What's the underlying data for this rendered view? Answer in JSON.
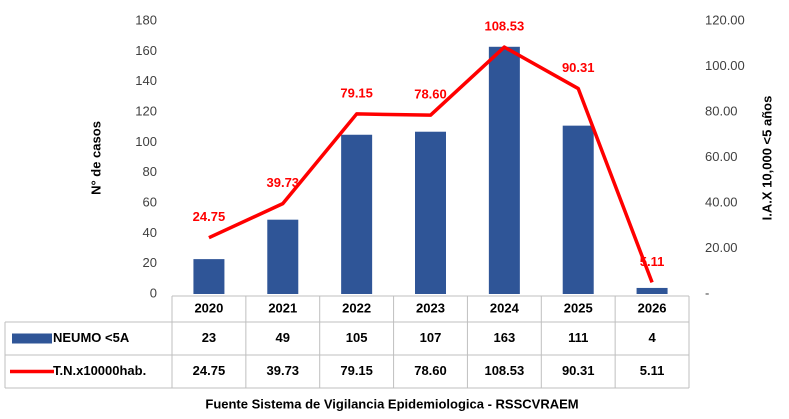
{
  "chart_data": {
    "type": "bar_line",
    "y_label": "N° de casos",
    "y2_label": "I.A.X 10,000 <5 años",
    "footer": "Fuente Sistema de Vigilancia  Epidemiologica  - RSSCVRAEM",
    "categories": [
      "2020",
      "2021",
      "2022",
      "2023",
      "2024",
      "2025",
      "2026"
    ],
    "series": [
      {
        "name": "NEUMO <5A",
        "color": "#2f5597",
        "type": "bar",
        "values": [
          23,
          49,
          105,
          107,
          163,
          111,
          4
        ]
      },
      {
        "name": "T.N.x10000hab.",
        "color": "#ff0000",
        "type": "line",
        "axis": "y2",
        "values": [
          24.75,
          39.73,
          79.15,
          78.6,
          108.53,
          90.31,
          5.11
        ],
        "value_labels": [
          "24.75",
          "39.73",
          "79.15",
          "78.60",
          "108.53",
          "90.31",
          "5.11"
        ]
      }
    ],
    "ylim": [
      0,
      180
    ],
    "yticks": [
      0,
      20,
      40,
      60,
      80,
      100,
      120,
      140,
      160,
      180
    ],
    "y2lim": [
      0,
      120
    ],
    "y2ticks": [
      {
        "value": 0,
        "label": "-"
      },
      {
        "value": 20,
        "label": "20.00"
      },
      {
        "value": 40,
        "label": "40.00"
      },
      {
        "value": 60,
        "label": "60.00"
      },
      {
        "value": 80,
        "label": "80.00"
      },
      {
        "value": 100,
        "label": "100.00"
      },
      {
        "value": 120,
        "label": "120.00"
      }
    ],
    "grid": false
  }
}
